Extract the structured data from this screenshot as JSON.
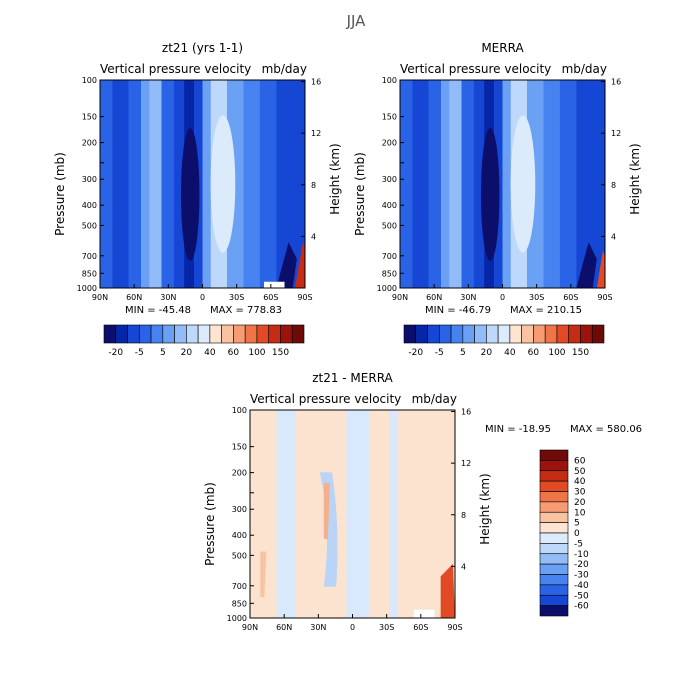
{
  "figure": {
    "title": "JJA"
  },
  "colors": {
    "blue_scale": [
      "#0b0f6b",
      "#0626a8",
      "#1546d4",
      "#2a63e6",
      "#4683f0",
      "#6aa1f5",
      "#92bcf7",
      "#bdd8fa",
      "#dcebfc"
    ],
    "warm_scale": [
      "#fde5d2",
      "#f9c3a1",
      "#f59c74",
      "#ef7448",
      "#e14a25",
      "#c42c16",
      "#9a130c",
      "#6e0a08"
    ],
    "diff_positive_fill": "#fbe3cf",
    "diff_negative_fill": "#d8e9fb",
    "background": "#ffffff"
  },
  "chart_data": [
    {
      "id": "model",
      "type": "heatmap",
      "title": "zt21 (yrs 1-1)",
      "subtitle_left": "Vertical pressure velocity",
      "subtitle_right": "mb/day",
      "ylabel": "Pressure (mb)",
      "ylabel_right": "Height (km)",
      "x_ticks": [
        "90N",
        "60N",
        "30N",
        "0",
        "30S",
        "60S",
        "90S"
      ],
      "y_ticks": [
        "100",
        "150",
        "200",
        "250",
        "300",
        "400",
        "500",
        "700",
        "850",
        "1000"
      ],
      "y_right_ticks": [
        "16",
        "12",
        "8",
        "4"
      ],
      "min_label": "MIN = -45.48",
      "max_label": "MAX = 778.83",
      "colorbar_labels": [
        "-20",
        "-5",
        "5",
        "20",
        "40",
        "60",
        "100",
        "150"
      ],
      "x_range": [
        "90N",
        "90S"
      ],
      "y_range": [
        1000,
        100
      ],
      "scale": "log-pressure"
    },
    {
      "id": "merra",
      "type": "heatmap",
      "title": "MERRA",
      "subtitle_left": "Vertical pressure velocity",
      "subtitle_right": "mb/day",
      "ylabel": "Pressure (mb)",
      "ylabel_right": "Height (km)",
      "x_ticks": [
        "90N",
        "60N",
        "30N",
        "0",
        "30S",
        "60S",
        "90S"
      ],
      "y_ticks": [
        "100",
        "150",
        "200",
        "250",
        "300",
        "400",
        "500",
        "700",
        "850",
        "1000"
      ],
      "y_right_ticks": [
        "16",
        "12",
        "8",
        "4"
      ],
      "min_label": "MIN = -46.79",
      "max_label": "MAX = 210.15",
      "colorbar_labels": [
        "-20",
        "-5",
        "5",
        "20",
        "40",
        "60",
        "100",
        "150"
      ],
      "x_range": [
        "90N",
        "90S"
      ],
      "y_range": [
        1000,
        100
      ],
      "scale": "log-pressure"
    },
    {
      "id": "diff",
      "type": "heatmap",
      "title": "zt21 - MERRA",
      "subtitle_left": "Vertical pressure velocity",
      "subtitle_right": "mb/day",
      "ylabel": "Pressure (mb)",
      "ylabel_right": "Height (km)",
      "x_ticks": [
        "90N",
        "60N",
        "30N",
        "0",
        "30S",
        "60S",
        "90S"
      ],
      "y_ticks": [
        "100",
        "150",
        "200",
        "250",
        "300",
        "400",
        "500",
        "700",
        "850",
        "1000"
      ],
      "y_right_ticks": [
        "16",
        "12",
        "8",
        "4"
      ],
      "min_label": "MIN = -18.95",
      "max_label": "MAX = 580.06",
      "colorbar_labels": [
        "60",
        "50",
        "40",
        "30",
        "20",
        "10",
        "5",
        "0",
        "-5",
        "-10",
        "-20",
        "-30",
        "-40",
        "-50",
        "-60"
      ],
      "x_range": [
        "90N",
        "90S"
      ],
      "y_range": [
        1000,
        100
      ],
      "scale": "log-pressure"
    }
  ]
}
